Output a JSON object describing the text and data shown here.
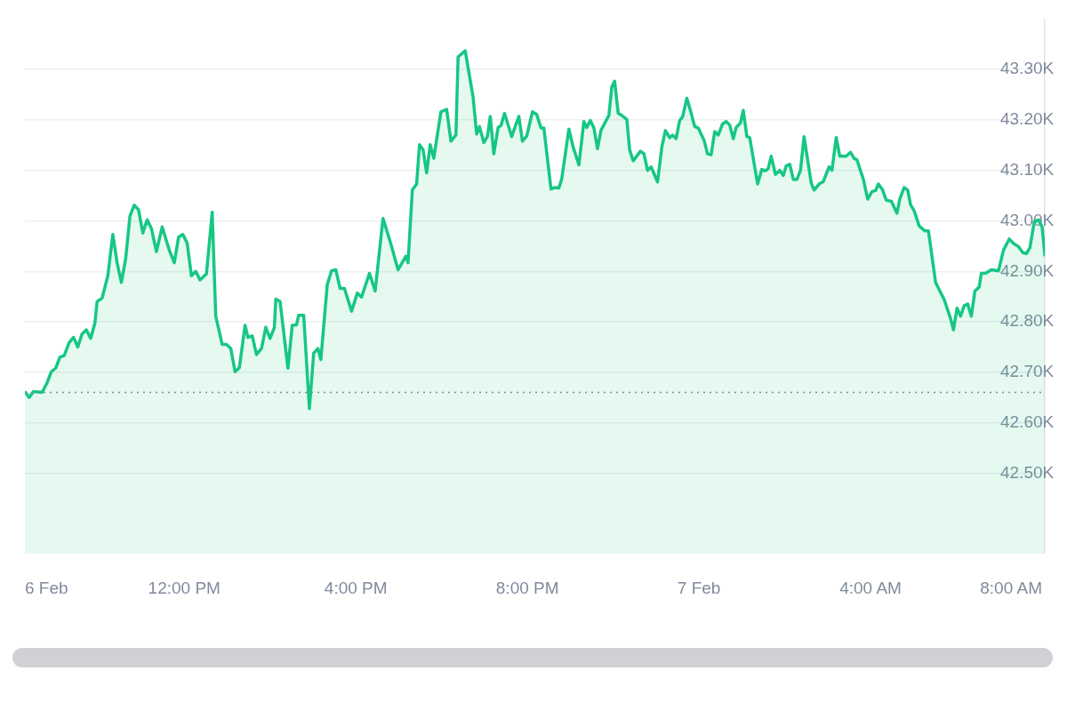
{
  "chart_data": {
    "type": "area",
    "x": [
      "--02-06T08:17",
      "--02-06T08:23",
      "--02-06T08:29",
      "--02-06T08:41",
      "--02-06T08:48",
      "--02-06T08:54",
      "--02-06T09:00",
      "--02-06T09:06",
      "--02-06T09:12",
      "--02-06T09:19",
      "--02-06T09:25",
      "--02-06T09:31",
      "--02-06T09:37",
      "--02-06T09:43",
      "--02-06T09:49",
      "--02-06T09:55",
      "--02-06T09:58",
      "--02-06T10:05",
      "--02-06T10:13",
      "--02-06T10:20",
      "--02-06T10:26",
      "--02-06T10:32",
      "--02-06T10:38",
      "--02-06T10:44",
      "--02-06T10:50",
      "--02-06T10:56",
      "--02-06T11:02",
      "--02-06T11:08",
      "--02-06T11:14",
      "--02-06T11:21",
      "--02-06T11:29",
      "--02-06T11:39",
      "--02-06T11:46",
      "--02-06T11:52",
      "--02-06T11:58",
      "--02-06T12:04",
      "--02-06T12:10",
      "--02-06T12:16",
      "--02-06T12:22",
      "--02-06T12:31",
      "--02-06T12:39",
      "--02-06T12:44",
      "--02-06T12:53",
      "--02-06T12:59",
      "--02-06T13:05",
      "--02-06T13:11",
      "--02-06T13:17",
      "--02-06T13:25",
      "--02-06T13:29",
      "--02-06T13:35",
      "--02-06T13:41",
      "--02-06T13:48",
      "--02-06T13:54",
      "--02-06T14:00",
      "--02-06T14:06",
      "--02-06T14:08",
      "--02-06T14:14",
      "--02-06T14:25",
      "--02-06T14:31",
      "--02-06T14:37",
      "--02-06T14:40",
      "--02-06T14:47",
      "--02-06T14:55",
      "--02-06T15:01",
      "--02-06T15:07",
      "--02-06T15:11",
      "--02-06T15:20",
      "--02-06T15:26",
      "--02-06T15:32",
      "--02-06T15:38",
      "--02-06T15:44",
      "--02-06T15:54",
      "--02-06T16:02",
      "--02-06T16:08",
      "--02-06T16:19",
      "--02-06T16:27",
      "--02-06T16:38",
      "--02-06T16:49",
      "--02-06T16:59",
      "--02-06T17:10",
      "--02-06T17:13",
      "--02-06T17:19",
      "--02-06T17:25",
      "--02-06T17:29",
      "--02-06T17:34",
      "--02-06T17:39",
      "--02-06T17:44",
      "--02-06T17:49",
      "--02-06T17:59",
      "--02-06T18:07",
      "--02-06T18:13",
      "--02-06T18:20",
      "--02-06T18:23",
      "--02-06T18:33",
      "--02-06T18:44",
      "--02-06T18:49",
      "--02-06T18:53",
      "--02-06T18:59",
      "--02-06T19:04",
      "--02-06T19:08",
      "--02-06T19:13",
      "--02-06T19:19",
      "--02-06T19:23",
      "--02-06T19:28",
      "--02-06T19:38",
      "--02-06T19:48",
      "--02-06T19:53",
      "--02-06T19:59",
      "--02-06T20:07",
      "--02-06T20:13",
      "--02-06T20:19",
      "--02-06T20:23",
      "--02-06T20:33",
      "--02-06T20:38",
      "--02-06T20:44",
      "--02-06T20:48",
      "--02-06T20:58",
      "--02-06T21:04",
      "--02-06T21:12",
      "--02-06T21:19",
      "--02-06T21:23",
      "--02-06T21:28",
      "--02-06T21:33",
      "--02-06T21:38",
      "--02-06T21:43",
      "--02-06T21:54",
      "--02-06T21:58",
      "--02-06T22:02",
      "--02-06T22:07",
      "--02-06T22:12",
      "--02-06T22:19",
      "--02-06T22:23",
      "--02-06T22:28",
      "--02-06T22:38",
      "--02-06T22:43",
      "--02-06T22:48",
      "--02-06T22:53",
      "--02-06T23:02",
      "--02-06T23:08",
      "--02-06T23:13",
      "--02-06T23:19",
      "--02-06T23:23",
      "--02-06T23:28",
      "--02-06T23:33",
      "--02-06T23:37",
      "--02-06T23:43",
      "--02-06T23:48",
      "--02-06T23:54",
      "--02-06T23:59",
      "--02-07T00:07",
      "--02-07T00:12",
      "--02-07T00:17",
      "--02-07T00:22",
      "--02-07T00:27",
      "--02-07T00:33",
      "--02-07T00:38",
      "--02-07T00:43",
      "--02-07T00:48",
      "--02-07T00:52",
      "--02-07T00:58",
      "--02-07T01:02",
      "--02-07T01:07",
      "--02-07T01:11",
      "--02-07T01:22",
      "--02-07T01:28",
      "--02-07T01:33",
      "--02-07T01:37",
      "--02-07T01:41",
      "--02-07T01:47",
      "--02-07T01:53",
      "--02-07T01:58",
      "--02-07T02:02",
      "--02-07T02:07",
      "--02-07T02:12",
      "--02-07T02:17",
      "--02-07T02:22",
      "--02-07T02:27",
      "--02-07T02:33",
      "--02-07T02:37",
      "--02-07T02:41",
      "--02-07T02:48",
      "--02-07T02:54",
      "--02-07T03:02",
      "--02-07T03:06",
      "--02-07T03:12",
      "--02-07T03:17",
      "--02-07T03:26",
      "--02-07T03:32",
      "--02-07T03:37",
      "--02-07T03:41",
      "--02-07T03:50",
      "--02-07T03:56",
      "--02-07T04:02",
      "--02-07T04:07",
      "--02-07T04:11",
      "--02-07T04:17",
      "--02-07T04:22",
      "--02-07T04:29",
      "--02-07T04:37",
      "--02-07T04:41",
      "--02-07T04:47",
      "--02-07T04:52",
      "--02-07T04:56",
      "--02-07T05:01",
      "--02-07T05:08",
      "--02-07T05:16",
      "--02-07T05:21",
      "--02-07T05:31",
      "--02-07T05:37",
      "--02-07T05:43",
      "--02-07T05:52",
      "--02-07T05:56",
      "--02-07T06:01",
      "--02-07T06:06",
      "--02-07T06:11",
      "--02-07T06:16",
      "--02-07T06:21",
      "--02-07T06:26",
      "--02-07T06:32",
      "--02-07T06:35",
      "--02-07T06:41",
      "--02-07T06:49",
      "--02-07T06:59",
      "--02-07T07:06",
      "--02-07T07:14",
      "--02-07T07:21",
      "--02-07T07:27",
      "--02-07T07:33",
      "--02-07T07:38",
      "--02-07T07:43",
      "--02-07T07:49",
      "--02-07T07:55",
      "--02-07T08:00",
      "--02-07T08:04"
    ],
    "series": [
      {
        "color": "#16c784",
        "values": [
          42662,
          42650,
          42662,
          42660,
          42679,
          42701,
          42708,
          42730,
          42733,
          42759,
          42769,
          42750,
          42776,
          42784,
          42767,
          42798,
          42840,
          42847,
          42891,
          42973,
          42917,
          42878,
          42925,
          43010,
          43031,
          43022,
          42976,
          43002,
          42985,
          42939,
          42988,
          42942,
          42917,
          42968,
          42973,
          42956,
          42891,
          42900,
          42883,
          42895,
          43017,
          42811,
          42755,
          42755,
          42747,
          42701,
          42709,
          42793,
          42769,
          42772,
          42735,
          42747,
          42789,
          42767,
          42789,
          42845,
          42840,
          42708,
          42793,
          42794,
          42813,
          42813,
          42628,
          42738,
          42747,
          42725,
          42874,
          42901,
          42903,
          42866,
          42866,
          42821,
          42857,
          42849,
          42896,
          42861,
          43005,
          42954,
          42903,
          42930,
          42917,
          43061,
          43073,
          43151,
          43141,
          43095,
          43151,
          43124,
          43216,
          43221,
          43158,
          43170,
          43325,
          43337,
          43245,
          43172,
          43187,
          43155,
          43167,
          43207,
          43133,
          43185,
          43189,
          43213,
          43167,
          43207,
          43158,
          43168,
          43216,
          43211,
          43184,
          43184,
          43063,
          43066,
          43065,
          43083,
          43182,
          43146,
          43111,
          43197,
          43185,
          43199,
          43184,
          43143,
          43180,
          43209,
          43265,
          43277,
          43213,
          43209,
          43201,
          43141,
          43119,
          43138,
          43133,
          43100,
          43107,
          43077,
          43146,
          43179,
          43165,
          43170,
          43163,
          43199,
          43206,
          43243,
          43219,
          43187,
          43184,
          43160,
          43133,
          43131,
          43177,
          43170,
          43192,
          43197,
          43190,
          43163,
          43185,
          43194,
          43219,
          43167,
          43165,
          43073,
          43102,
          43099,
          43104,
          43128,
          43092,
          43100,
          43090,
          43109,
          43112,
          43082,
          43082,
          43100,
          43167,
          43112,
          43075,
          43061,
          43073,
          43078,
          43107,
          43100,
          43165,
          43128,
          43128,
          43136,
          43124,
          43121,
          43082,
          43043,
          43058,
          43060,
          43073,
          43061,
          43041,
          43039,
          43015,
          43044,
          43066,
          43061,
          43032,
          43020,
          42990,
          42980,
          42980,
          42878,
          42861,
          42844,
          42806,
          42784,
          42827,
          42811,
          42832,
          42835,
          42811,
          42861,
          42869,
          42896,
          42896,
          42903,
          42901,
          42942,
          42964,
          42954,
          42949,
          42937,
          42935,
          42947,
          42998,
          43002,
          42988,
          42930
        ]
      }
    ],
    "xlim": [
      "--02-06T08:17",
      "--02-07T08:04"
    ],
    "xticks": [
      {
        "value": "--02-06T08:17",
        "label": "6 Feb"
      },
      {
        "value": "--02-06T12:00",
        "label": "12:00 PM"
      },
      {
        "value": "--02-06T16:00",
        "label": "4:00 PM"
      },
      {
        "value": "--02-06T20:00",
        "label": "8:00 PM"
      },
      {
        "value": "--02-07T00:00",
        "label": "7 Feb"
      },
      {
        "value": "--02-07T04:00",
        "label": "4:00 AM"
      },
      {
        "value": "--02-07T08:00",
        "label": "8:00 AM"
      }
    ],
    "ylim": [
      42340,
      43400
    ],
    "yticks": [
      {
        "value": 42500,
        "label": "42.50K"
      },
      {
        "value": 42600,
        "label": "42.60K"
      },
      {
        "value": 42700,
        "label": "42.70K"
      },
      {
        "value": 42800,
        "label": "42.80K"
      },
      {
        "value": 42900,
        "label": "42.90K"
      },
      {
        "value": 43000,
        "label": "43.00K"
      },
      {
        "value": 43100,
        "label": "43.10K"
      },
      {
        "value": 43200,
        "label": "43.20K"
      },
      {
        "value": 43300,
        "label": "43.30K"
      }
    ],
    "ref_lines": [
      {
        "axis": "y",
        "value": 42660,
        "color": "#808a9d",
        "line_style": "dotted"
      }
    ],
    "grid": "y",
    "legend": false,
    "marker": "none",
    "line_style": "solid"
  }
}
